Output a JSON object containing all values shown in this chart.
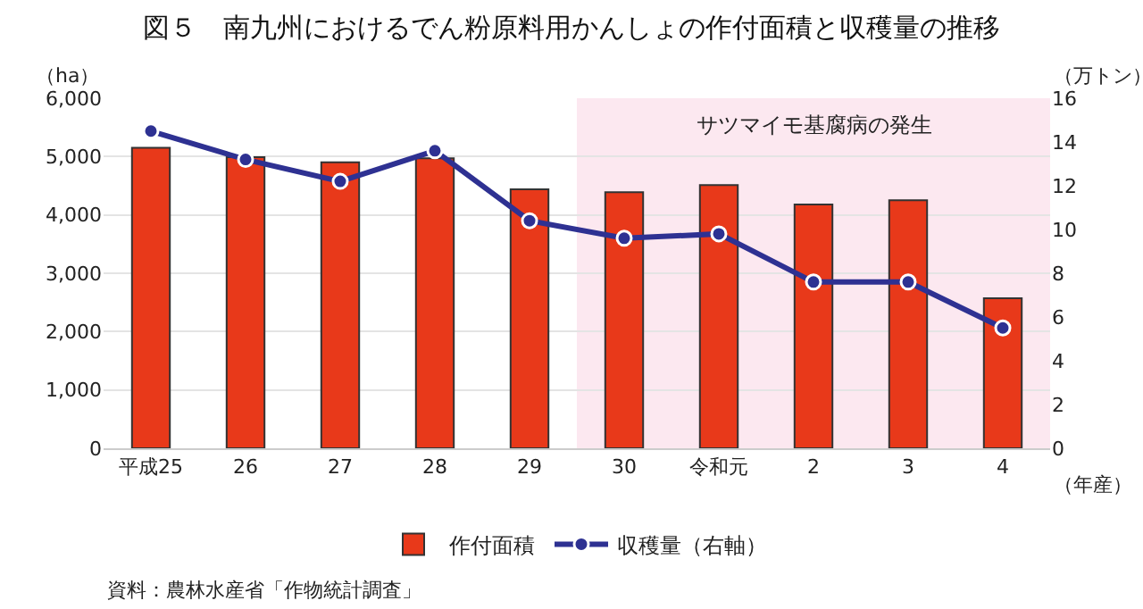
{
  "chart_data": {
    "type": "bar",
    "title": "図５　南九州におけるでん粉原料用かんしょの作付面積と収穫量の推移",
    "categories": [
      "平成25",
      "26",
      "27",
      "28",
      "29",
      "30",
      "令和元",
      "2",
      "3",
      "4"
    ],
    "xlabel": "（年産）",
    "ylabel": "（ha）",
    "y2label": "（万トン）",
    "series": [
      {
        "name": "作付面積",
        "color": "#e8391a",
        "values": [
          5150,
          4990,
          4900,
          4970,
          4440,
          4390,
          4510,
          4180,
          4250,
          2570
        ]
      },
      {
        "name": "収穫量（右軸）",
        "type": "line",
        "axis": "y2",
        "color": "#2e3192",
        "marker": "circle",
        "values": [
          14.5,
          13.2,
          12.2,
          13.6,
          10.4,
          9.6,
          9.8,
          7.6,
          7.6,
          5.5
        ]
      }
    ],
    "ylim": [
      0,
      6000
    ],
    "yticks": [
      0,
      {
        "value": 1000,
        "label": "1,000"
      },
      {
        "value": 2000,
        "label": "2,000"
      },
      {
        "value": 3000,
        "label": "3,000"
      },
      {
        "value": 4000,
        "label": "4,000"
      },
      {
        "value": 5000,
        "label": "5,000"
      },
      {
        "value": 6000,
        "label": "6,000"
      }
    ],
    "y2lim": [
      0,
      16
    ],
    "y2ticks": [
      0,
      2,
      4,
      6,
      8,
      10,
      12,
      14,
      16
    ],
    "bands": [
      {
        "axis": "x",
        "from": "30",
        "to": "4",
        "label": "サツマイモ基腐病の発生",
        "color": "#fce8f0"
      }
    ],
    "grid": "y",
    "legend": "bottom",
    "annotations": [
      "資料：農林水産省「作物統計調査」"
    ]
  }
}
